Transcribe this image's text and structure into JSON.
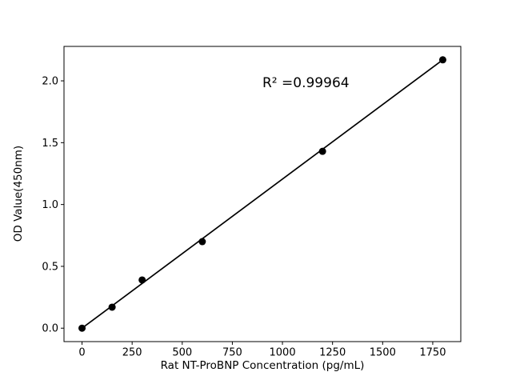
{
  "chart_data": {
    "type": "scatter",
    "title": "",
    "xlabel": "Rat NT-ProBNP Concentration (pg/mL)",
    "ylabel": "OD Value(450nm)",
    "x": [
      0,
      150,
      300,
      600,
      1200,
      1800
    ],
    "y": [
      0.0,
      0.17,
      0.39,
      0.7,
      1.43,
      2.17
    ],
    "fit_line": {
      "x": [
        0,
        1800
      ],
      "y": [
        0.0,
        2.17
      ]
    },
    "annotation": {
      "text": "R² =0.99964",
      "x": 900,
      "y": 1.95
    },
    "xlim": [
      -90,
      1890
    ],
    "ylim": [
      -0.1085,
      2.2785
    ],
    "xticks": [
      0,
      250,
      500,
      750,
      1000,
      1250,
      1500,
      1750
    ],
    "xtick_labels": [
      "0",
      "250",
      "500",
      "750",
      "1000",
      "1250",
      "1500",
      "1750"
    ],
    "yticks": [
      0.0,
      0.5,
      1.0,
      1.5,
      2.0
    ],
    "ytick_labels": [
      "0.0",
      "0.5",
      "1.0",
      "1.5",
      "2.0"
    ],
    "grid": false,
    "legend": "none",
    "line_color": "#000000",
    "marker_color": "#000000",
    "axis_color": "#000000",
    "background_color": "#ffffff"
  }
}
